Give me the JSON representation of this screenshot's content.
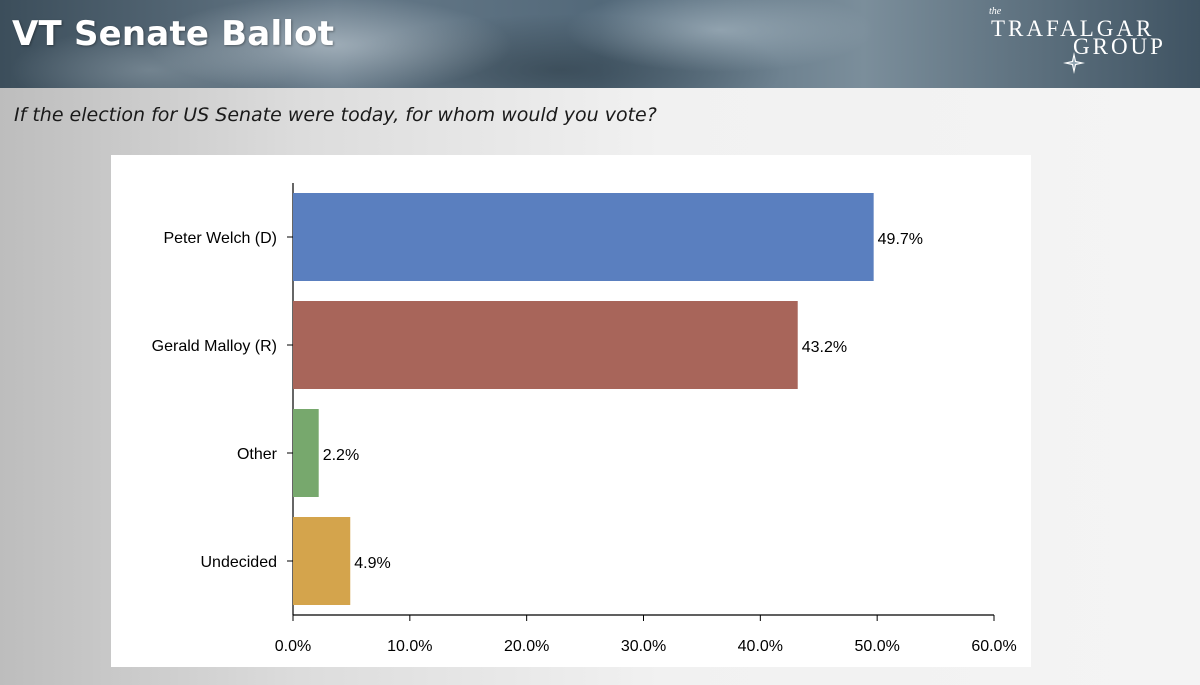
{
  "header": {
    "title": "VT Senate Ballot",
    "logo": {
      "small": "the",
      "line1": "TRAFALGAR",
      "line2": "GROUP",
      "icon": "compass-star-icon"
    }
  },
  "question": "If the election for US Senate were today, for whom would you vote?",
  "colors": {
    "welch": "#5a7fbf",
    "malloy": "#a8655a",
    "other": "#77a86d",
    "undecided": "#d4a44c"
  },
  "chart_data": {
    "type": "bar",
    "orientation": "horizontal",
    "categories": [
      "Peter Welch (D)",
      "Gerald Malloy (R)",
      "Other",
      "Undecided"
    ],
    "values": [
      49.7,
      43.2,
      2.2,
      4.9
    ],
    "value_labels": [
      "49.7%",
      "43.2%",
      "2.2%",
      "4.9%"
    ],
    "bar_colors": [
      "#5a7fbf",
      "#a8655a",
      "#77a86d",
      "#d4a44c"
    ],
    "xlim": [
      0,
      60
    ],
    "x_ticks": [
      0,
      10,
      20,
      30,
      40,
      50,
      60
    ],
    "x_tick_labels": [
      "0.0%",
      "10.0%",
      "20.0%",
      "30.0%",
      "40.0%",
      "50.0%",
      "60.0%"
    ],
    "title": "",
    "xlabel": "",
    "ylabel": "",
    "grid": false,
    "legend": "none"
  }
}
